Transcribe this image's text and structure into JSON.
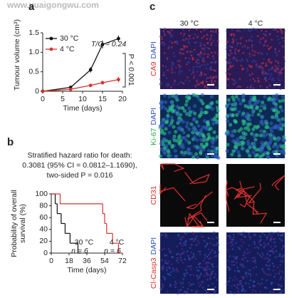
{
  "watermark": "www.yuaigongwu.com",
  "chart_data": [
    {
      "type": "line",
      "panel": "a",
      "xlabel": "Time (days)",
      "ylabel": "Tumour volume (cm³)",
      "annotations": [
        "T/C = 0.24",
        "P < 0.001"
      ],
      "x": [
        0,
        7,
        12,
        15,
        19
      ],
      "series": [
        {
          "name": "30 °C",
          "color": "#111111",
          "values": [
            0,
            0.1,
            0.55,
            1.2,
            1.35
          ],
          "errors": [
            0.01,
            0.03,
            0.07,
            0.1,
            0.08
          ]
        },
        {
          "name": "4 °C",
          "color": "#d9312b",
          "values": [
            0,
            0.05,
            0.15,
            0.22,
            0.3
          ],
          "errors": [
            0.01,
            0.02,
            0.04,
            0.05,
            0.07
          ]
        }
      ],
      "xlim": [
        0,
        20
      ],
      "xticks": [
        0,
        5,
        10,
        15,
        20
      ],
      "ylim": [
        0,
        1.5
      ],
      "yticks": [
        0,
        0.5,
        {
          "value": 1,
          "label": "1.0"
        },
        1.5
      ]
    },
    {
      "type": "step",
      "panel": "b",
      "title_lines": [
        "Stratified hazard ratio for death:",
        "0.3081 (95% CI = 0.0812–1.1690),",
        "two-sided P = 0.016"
      ],
      "xlabel": "Time (days)",
      "ylabel": [
        "Probability of overall",
        "survival (%)"
      ],
      "series": [
        {
          "name": "30 °C",
          "n_label": "n = 6",
          "color": "#111111",
          "x": [
            0,
            4,
            6,
            10,
            14,
            19,
            27
          ],
          "values": [
            100,
            83.3,
            66.7,
            50,
            33.3,
            16.7,
            0
          ]
        },
        {
          "name": "4 °C",
          "n_label": "n = 6",
          "color": "#d9312b",
          "x": [
            0,
            9,
            52,
            54,
            56,
            62,
            68
          ],
          "values": [
            100,
            83.3,
            66.7,
            50,
            33.3,
            16.7,
            0
          ]
        }
      ],
      "xlim": [
        0,
        72
      ],
      "xticks": [
        0,
        18,
        36,
        54,
        72
      ],
      "ylim": [
        0,
        100
      ],
      "yticks": [
        0,
        20,
        40,
        60,
        80,
        100
      ]
    }
  ],
  "panel_c": {
    "label": "c",
    "columns": [
      "30 °C",
      "4 °C"
    ],
    "rows": [
      {
        "stain": "CA9",
        "counterstain": "DAPI"
      },
      {
        "stain": "Ki-67",
        "counterstain": "DAPI"
      },
      {
        "stain": "CD31"
      },
      {
        "stain": "Cl-Casp3",
        "counterstain": "DAPI"
      }
    ]
  }
}
